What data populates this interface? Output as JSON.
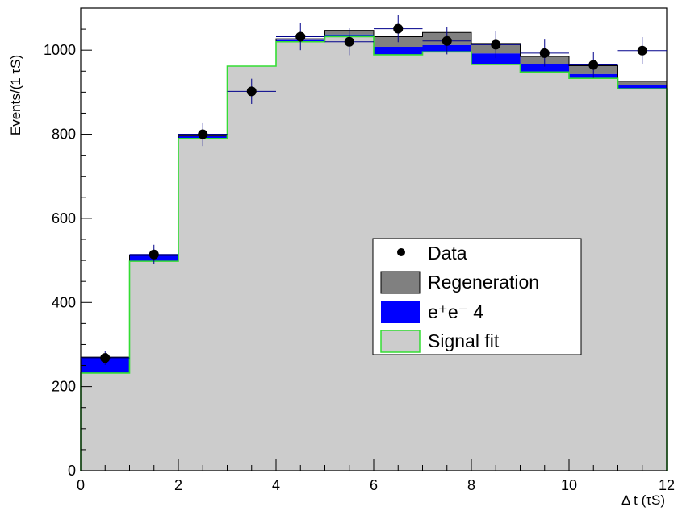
{
  "chart_data": {
    "type": "bar",
    "xlabel": "Δ t (τS)",
    "ylabel": "Events/(1 τS)",
    "xlim": [
      0,
      12
    ],
    "ylim": [
      0,
      1100
    ],
    "x_ticks": [
      "0",
      "2",
      "4",
      "6",
      "8",
      "10",
      "12"
    ],
    "y_ticks": [
      "0",
      "200",
      "400",
      "600",
      "800",
      "1000"
    ],
    "bin_edges": [
      0,
      1,
      2,
      3,
      4,
      5,
      6,
      7,
      8,
      9,
      10,
      11,
      12
    ],
    "series": [
      {
        "name": "Data",
        "kind": "points",
        "x": [
          0.5,
          1.5,
          2.5,
          3.5,
          4.5,
          5.5,
          6.5,
          7.5,
          8.5,
          9.5,
          10.5,
          11.5
        ],
        "values": [
          268,
          514,
          800,
          902,
          1032,
          1020,
          1051,
          1022,
          1013,
          993,
          965,
          999
        ],
        "errors": [
          17,
          23,
          28,
          30,
          32,
          32,
          32,
          32,
          32,
          32,
          31,
          32
        ]
      },
      {
        "name": "Regeneration",
        "kind": "stacked_band",
        "values": [
          270,
          512,
          796,
          962,
          1027,
          1047,
          1032,
          1042,
          1016,
          985,
          963,
          926
        ],
        "color": "#808080"
      },
      {
        "name": "e+e- 4",
        "legend_text": "e⁺e⁻  4",
        "kind": "stacked_band",
        "values": [
          270,
          512,
          796,
          962,
          1024,
          1037,
          1008,
          1012,
          992,
          967,
          943,
          916
        ],
        "color": "#0000ff"
      },
      {
        "name": "Signal fit",
        "kind": "filled_step",
        "values": [
          232,
          498,
          790,
          962,
          1020,
          1032,
          989,
          996,
          966,
          948,
          933,
          908
        ],
        "fill": "#cccccc",
        "line": "#33dd33"
      }
    ],
    "legend_position": "center-right",
    "grid": false
  }
}
